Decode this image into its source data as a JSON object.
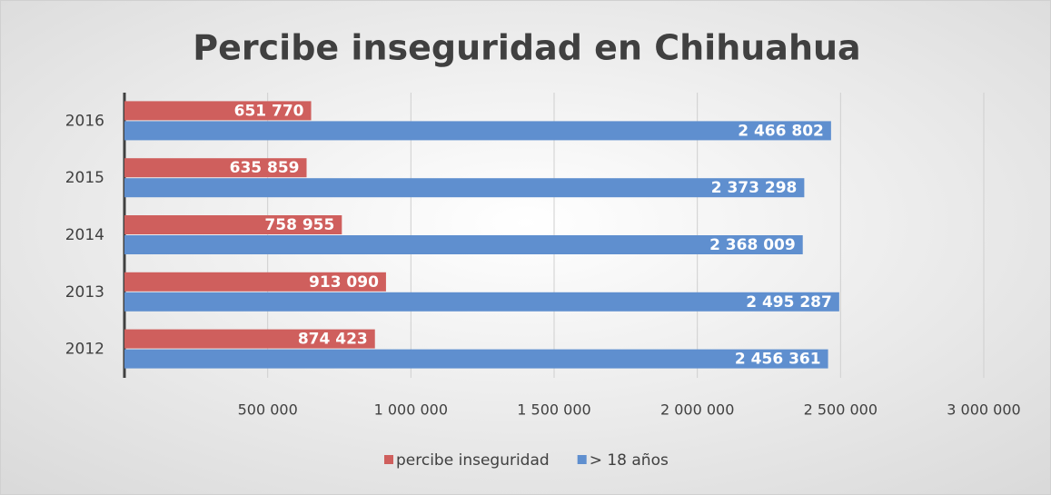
{
  "chart_data": {
    "type": "bar",
    "orientation": "horizontal",
    "title": "Percibe inseguridad en Chihuahua",
    "categories": [
      "2012",
      "2013",
      "2014",
      "2015",
      "2016"
    ],
    "series": [
      {
        "name": "percibe inseguridad",
        "color": "#cf5f5d",
        "values": [
          874423,
          913090,
          758955,
          635859,
          651770
        ],
        "value_labels": [
          "874 423",
          "913 090",
          "758 955",
          "635 859",
          "651 770"
        ]
      },
      {
        "name": "> 18 años",
        "color": "#5f8fcf",
        "values": [
          2456361,
          2495287,
          2368009,
          2373298,
          2466802
        ],
        "value_labels": [
          "2 456 361",
          "2 495 287",
          "2 368 009",
          "2 373 298",
          "2 466 802"
        ]
      }
    ],
    "xlim": [
      0,
      3000000
    ],
    "xticks": [
      {
        "value": 500000,
        "label": "500 000"
      },
      {
        "value": 1000000,
        "label": "1 000 000"
      },
      {
        "value": 1500000,
        "label": "1 500 000"
      },
      {
        "value": 2000000,
        "label": "2 000 000"
      },
      {
        "value": 2500000,
        "label": "2 500 000"
      },
      {
        "value": 3000000,
        "label": "3 000 000"
      }
    ],
    "grid": true,
    "legend": "bottom"
  }
}
